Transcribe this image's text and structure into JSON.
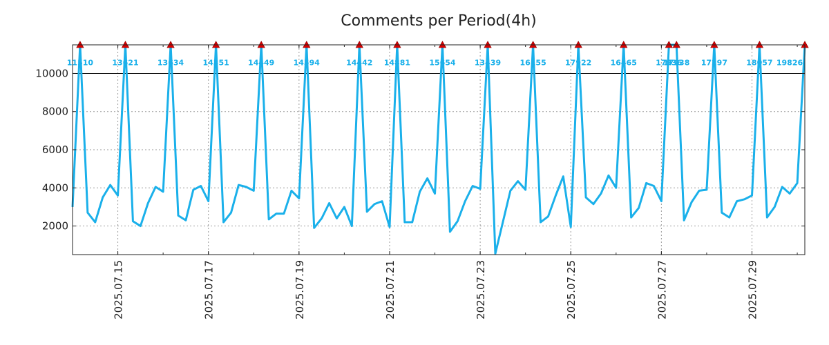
{
  "chart_data": {
    "type": "line",
    "title": "Comments per Period(4h)",
    "xlabel": "",
    "ylabel": "",
    "ylim": [
      500,
      11500
    ],
    "xlim": [
      0,
      97
    ],
    "grid": true,
    "threshold": 10000,
    "yticks": [
      2000,
      4000,
      6000,
      8000,
      10000
    ],
    "ytick_labels": [
      "2000",
      "4000",
      "6000",
      "8000",
      "10000"
    ],
    "xticks": [
      {
        "index": 6,
        "label": "2025.07.15"
      },
      {
        "index": 18,
        "label": "2025.07.17"
      },
      {
        "index": 30,
        "label": "2025.07.19"
      },
      {
        "index": 42,
        "label": "2025.07.21"
      },
      {
        "index": 54,
        "label": "2025.07.23"
      },
      {
        "index": 66,
        "label": "2025.07.25"
      },
      {
        "index": 78,
        "label": "2025.07.27"
      },
      {
        "index": 90,
        "label": "2025.07.29"
      }
    ],
    "series": [
      {
        "name": "Comments",
        "color": "#1ab0ea",
        "values": [
          3000,
          11510,
          2700,
          2200,
          3500,
          4150,
          3600,
          13621,
          2250,
          2000,
          3200,
          4050,
          3800,
          13634,
          2550,
          2300,
          3900,
          4100,
          3300,
          14351,
          2200,
          2700,
          4150,
          4050,
          3850,
          14449,
          2350,
          2650,
          2650,
          3850,
          3450,
          14594,
          1900,
          2400,
          3200,
          2400,
          3000,
          2000,
          14442,
          2750,
          3150,
          3300,
          1950,
          14881,
          2200,
          2200,
          3800,
          4500,
          3700,
          15654,
          1700,
          2250,
          3300,
          4100,
          3950,
          13439,
          550,
          2200,
          3850,
          4350,
          3900,
          16155,
          2200,
          2500,
          3600,
          4600,
          1950,
          17922,
          3500,
          3150,
          3700,
          4650,
          4000,
          16465,
          2450,
          2950,
          4250,
          4100,
          3300,
          17936,
          17938,
          2300,
          3250,
          3850,
          3900,
          17297,
          2700,
          2450,
          3300,
          3400,
          3600,
          18057,
          2450,
          3000,
          4050,
          3700,
          4250,
          19826
        ]
      }
    ],
    "peaks": [
      {
        "index": 1,
        "value": 11510,
        "label": "11510"
      },
      {
        "index": 7,
        "value": 13621,
        "label": "13621"
      },
      {
        "index": 13,
        "value": 13634,
        "label": "13634"
      },
      {
        "index": 19,
        "value": 14351,
        "label": "14351"
      },
      {
        "index": 25,
        "value": 14449,
        "label": "14449"
      },
      {
        "index": 31,
        "value": 14594,
        "label": "14594"
      },
      {
        "index": 38,
        "value": 14442,
        "label": "14442"
      },
      {
        "index": 43,
        "value": 14881,
        "label": "14881"
      },
      {
        "index": 49,
        "value": 15654,
        "label": "15654"
      },
      {
        "index": 55,
        "value": 13439,
        "label": "13439"
      },
      {
        "index": 61,
        "value": 16155,
        "label": "16155"
      },
      {
        "index": 67,
        "value": 17922,
        "label": "17922"
      },
      {
        "index": 73,
        "value": 16465,
        "label": "16465"
      },
      {
        "index": 79,
        "value": 17936,
        "label": "17936"
      },
      {
        "index": 80,
        "value": 17938,
        "label": "17938"
      },
      {
        "index": 85,
        "value": 17297,
        "label": "17297"
      },
      {
        "index": 91,
        "value": 18057,
        "label": "18057"
      },
      {
        "index": 97,
        "value": 19826,
        "label": "19826"
      }
    ],
    "marker_color": "#dd0000",
    "label_color": "#1ab0ea"
  }
}
